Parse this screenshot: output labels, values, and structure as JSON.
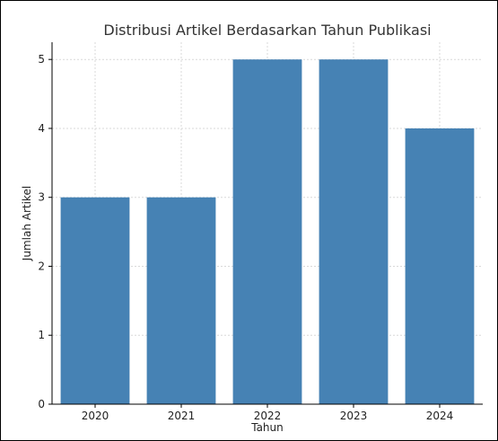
{
  "chart_data": {
    "type": "bar",
    "title": "Distribusi Artikel Berdasarkan Tahun Publikasi",
    "xlabel": "Tahun",
    "ylabel": "Jumlah Artikel",
    "categories": [
      "2020",
      "2021",
      "2022",
      "2023",
      "2024"
    ],
    "values": [
      3,
      3,
      5,
      5,
      4
    ],
    "ylim": [
      0,
      5.25
    ],
    "yticks": [
      "0",
      "1",
      "2",
      "3",
      "4",
      "5"
    ],
    "grid": true,
    "legend": false,
    "bar_color": "#4682B4",
    "grid_color": "#d9d9d9"
  }
}
